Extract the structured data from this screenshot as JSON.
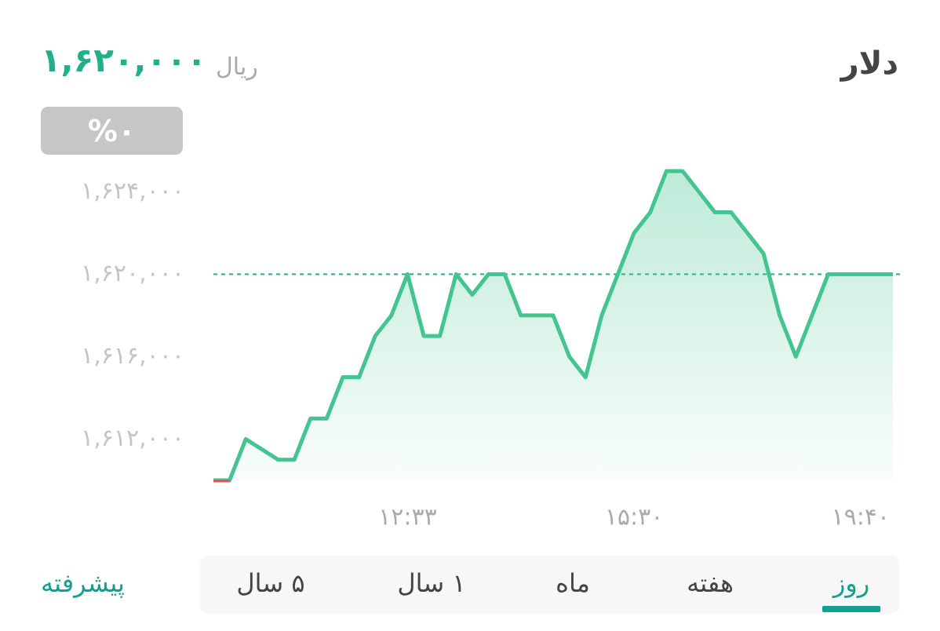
{
  "header": {
    "title": "دلار",
    "price": "۱,۶۲۰,۰۰۰",
    "unit": "ریال",
    "change": "%۰"
  },
  "chart_data": {
    "type": "line",
    "categories": [
      null,
      null,
      null,
      null,
      null,
      null,
      null,
      null,
      null,
      null,
      null,
      null,
      "۱۲:۳۳",
      null,
      null,
      null,
      null,
      null,
      null,
      null,
      null,
      null,
      null,
      null,
      null,
      null,
      "۱۵:۳۰",
      null,
      null,
      null,
      null,
      null,
      null,
      null,
      null,
      null,
      null,
      null,
      null,
      null,
      "۱۹:۴۰",
      null,
      null
    ],
    "series": [
      {
        "color": "#44c48f",
        "start_color": "#e0505a",
        "values": [
          1610000,
          1610000,
          1612000,
          1611500,
          1611000,
          1611000,
          1613000,
          1613000,
          1615000,
          1615000,
          1617000,
          1618000,
          1620000,
          1617000,
          1617000,
          1620000,
          1619000,
          1620000,
          1620000,
          1618000,
          1618000,
          1618000,
          1616000,
          1615000,
          1618000,
          1620000,
          1622000,
          1623000,
          1625000,
          1625000,
          1624000,
          1623000,
          1623000,
          1622000,
          1621000,
          1618000,
          1616000,
          1618000,
          1620000,
          1620000,
          1620000,
          1620000,
          1620000
        ]
      }
    ],
    "reference_line": 1620000,
    "ylim": [
      1610000,
      1625000
    ],
    "yticks": [
      {
        "value": 1612000,
        "label": "۱,۶۱۲,۰۰۰"
      },
      {
        "value": 1616000,
        "label": "۱,۶۱۶,۰۰۰"
      },
      {
        "value": 1620000,
        "label": "۱,۶۲۰,۰۰۰"
      },
      {
        "value": 1624000,
        "label": "۱,۶۲۴,۰۰۰"
      }
    ],
    "grid": false
  },
  "tabs": {
    "items": [
      "روز",
      "هفته",
      "ماه",
      "۱ سال",
      "۵ سال"
    ],
    "active": 0,
    "advanced": "پیشرفته"
  }
}
